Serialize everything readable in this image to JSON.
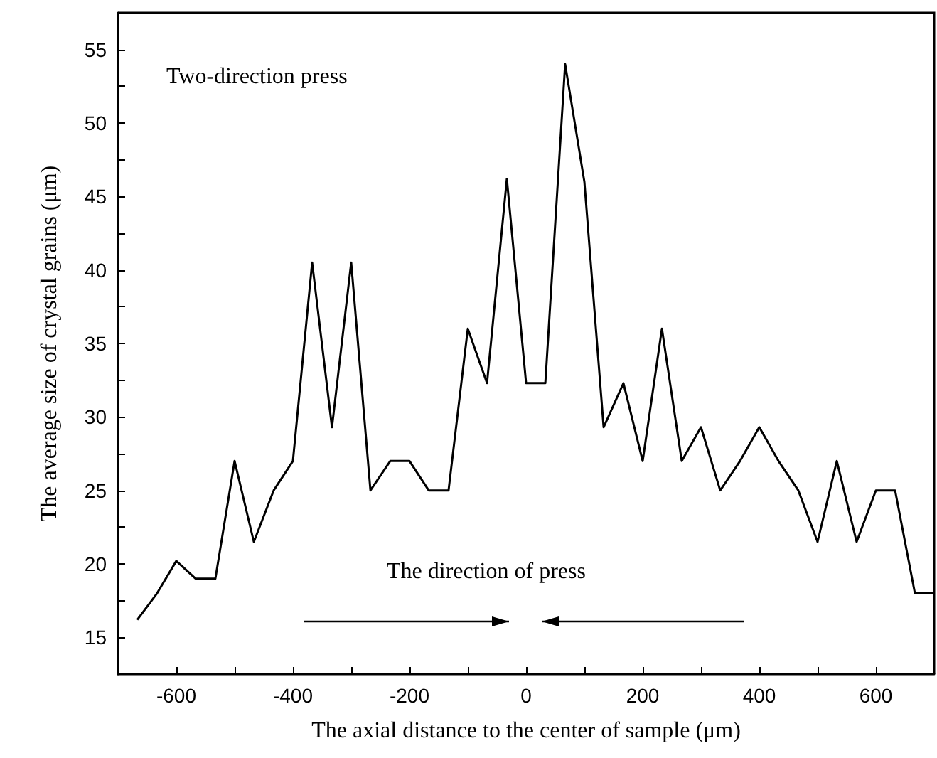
{
  "chart_data": {
    "type": "line",
    "xlabel": "The axial distance to the center of sample (μm)",
    "ylabel": "The average size of crystal grains (μm)",
    "annotations": [
      "Two-direction press",
      "The direction of press"
    ],
    "x": [
      -667,
      -633,
      -600,
      -567,
      -533,
      -500,
      -467,
      -433,
      -400,
      -367,
      -333,
      -300,
      -267,
      -233,
      -200,
      -167,
      -133,
      -100,
      -67,
      -33,
      0,
      33,
      67,
      100,
      133,
      167,
      200,
      233,
      267,
      300,
      333,
      367,
      400,
      433,
      467,
      500,
      533,
      567,
      600,
      633,
      667,
      700
    ],
    "series": [
      {
        "color": "#000000",
        "values": [
          16.2,
          18,
          20.2,
          19,
          19,
          27,
          21.5,
          25,
          27,
          40.5,
          29.3,
          40.5,
          25,
          27,
          27,
          25,
          25,
          36,
          32.3,
          46.2,
          32.3,
          32.3,
          54,
          46,
          29.3,
          32.3,
          27,
          36,
          27,
          29.3,
          25,
          27,
          29.3,
          27,
          25,
          21.5,
          27,
          21.5,
          25,
          25,
          18,
          18
        ]
      }
    ],
    "xlim": [
      -700,
      700
    ],
    "xticks": [
      -600,
      {
        "value": -500,
        "label": null
      },
      -400,
      {
        "value": -300,
        "label": null
      },
      -200,
      {
        "value": -100,
        "label": null
      },
      0,
      {
        "value": 100,
        "label": null
      },
      200,
      {
        "value": 300,
        "label": null
      },
      400,
      {
        "value": 500,
        "label": null
      },
      600
    ],
    "ylim": [
      12.5,
      57.5
    ],
    "yticks": [
      15,
      {
        "value": 17.5,
        "label": null
      },
      20,
      {
        "value": 22.5,
        "label": null
      },
      25,
      {
        "value": 27.5,
        "label": null
      },
      30,
      {
        "value": 32.5,
        "label": null
      },
      35,
      {
        "value": 37.5,
        "label": null
      },
      40,
      {
        "value": 42.5,
        "label": null
      },
      45,
      {
        "value": 47.5,
        "label": null
      },
      50,
      {
        "value": 52.5,
        "label": null
      },
      55
    ],
    "grid": false,
    "marker": "none",
    "line_style": "solid"
  }
}
